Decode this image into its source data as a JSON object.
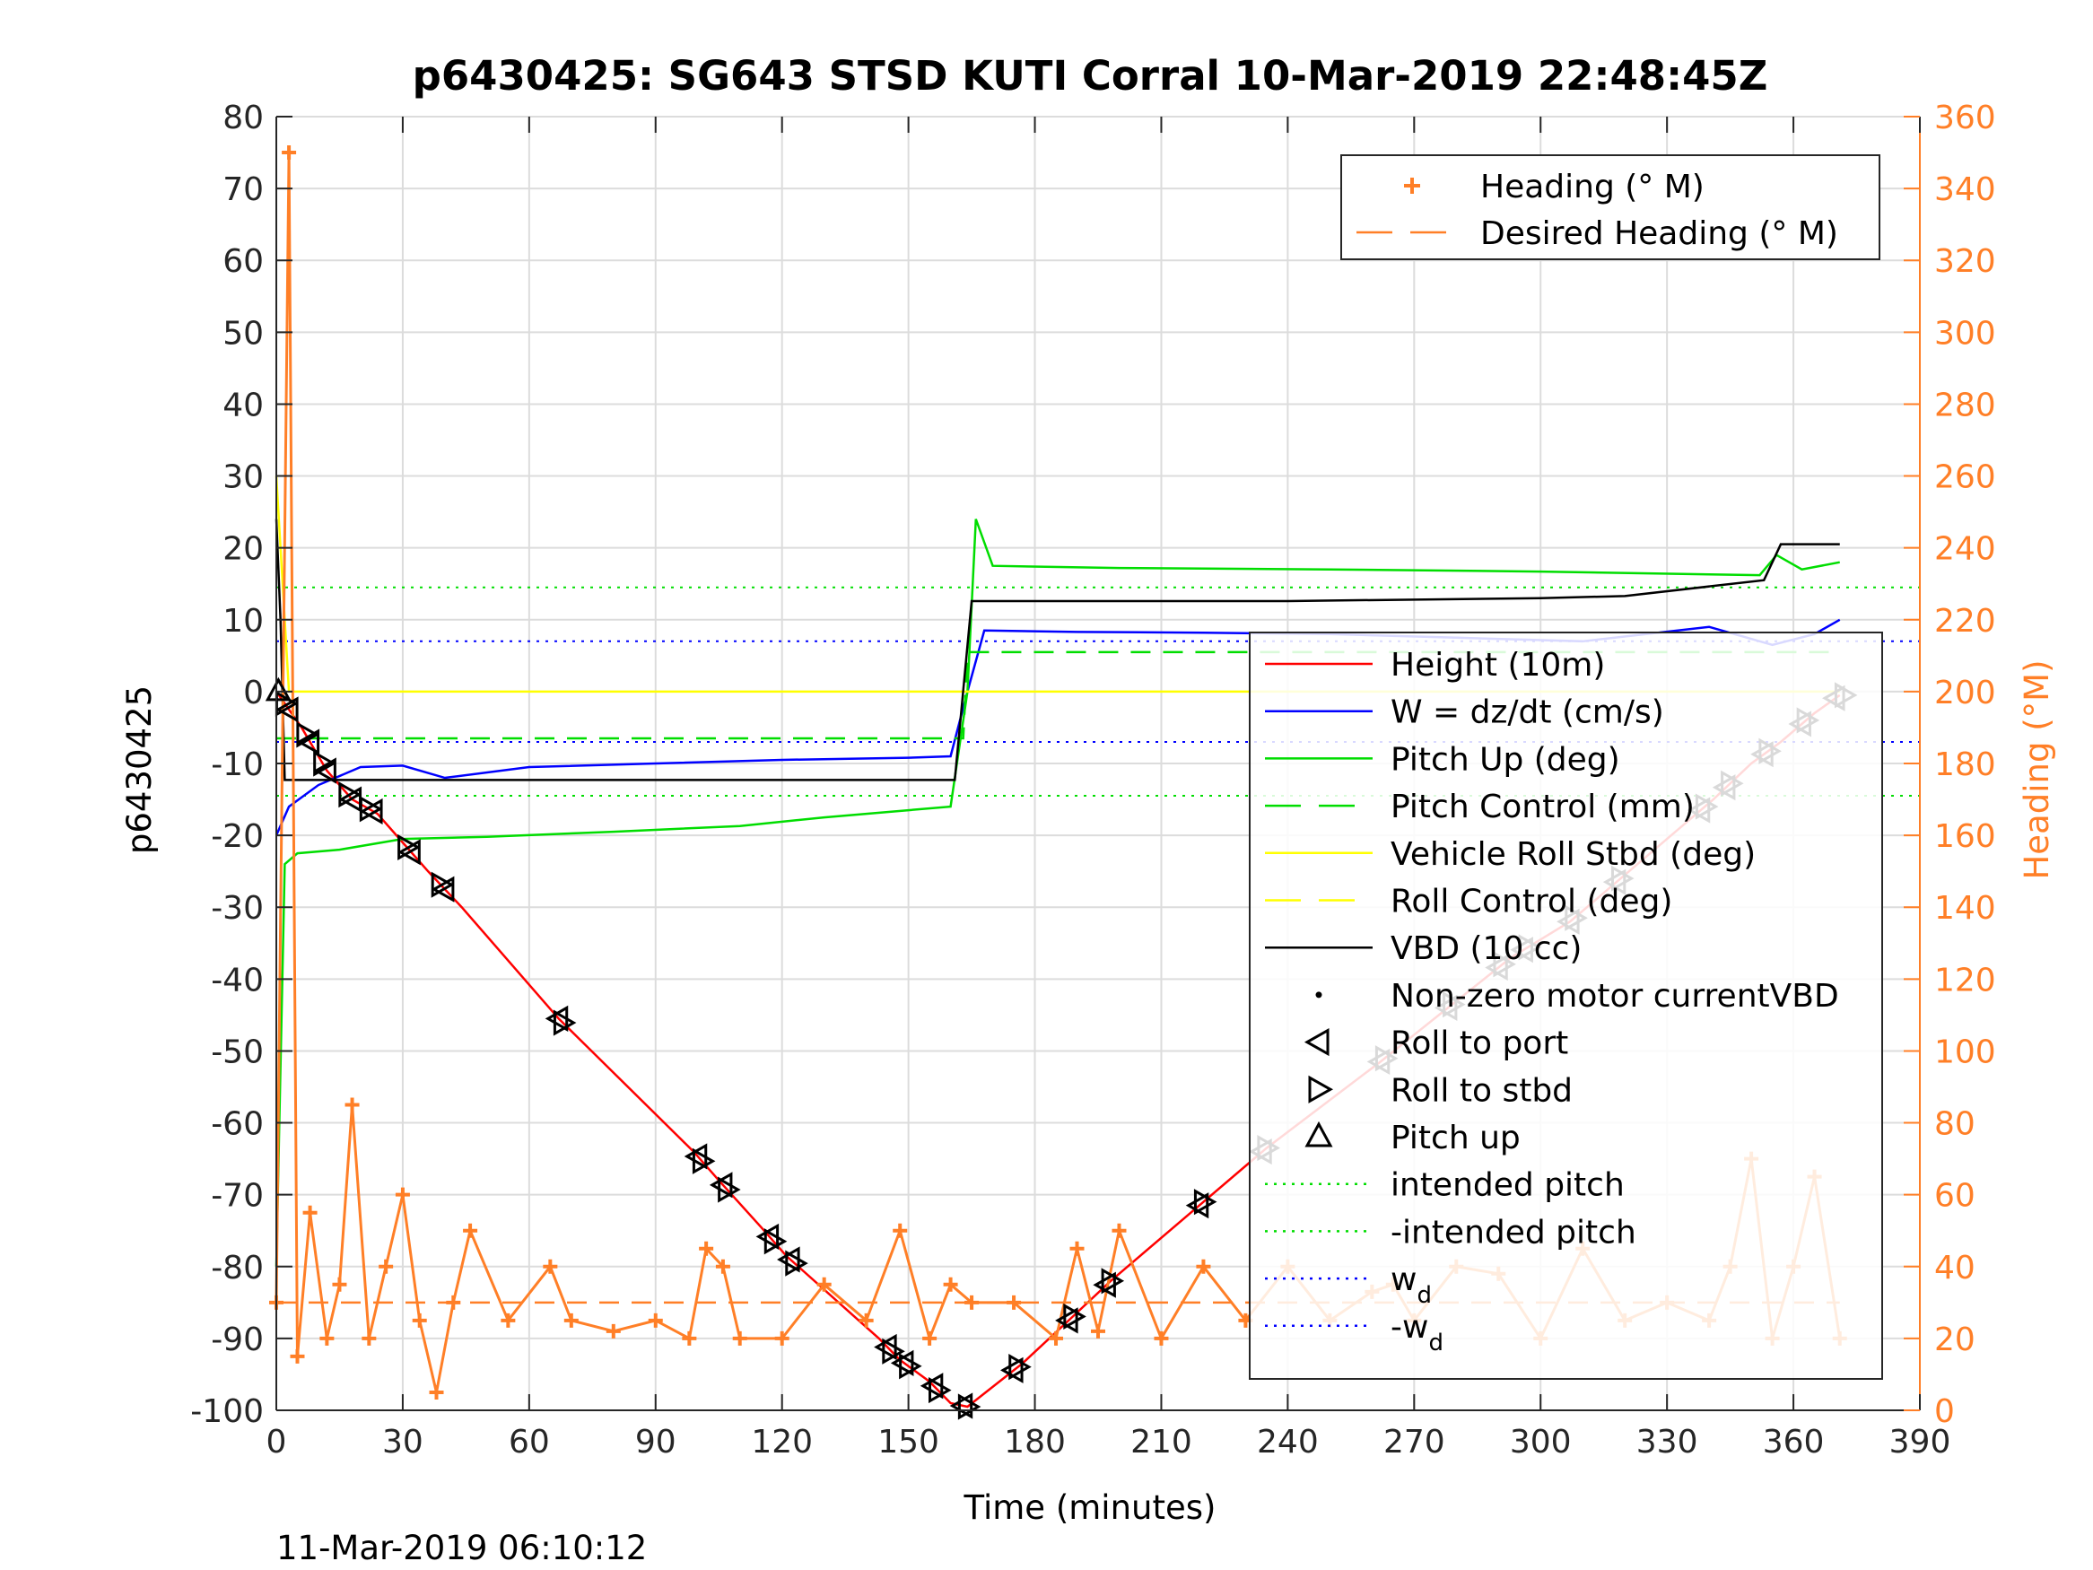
{
  "chart_data": {
    "type": "line",
    "title": "p6430425: SG643 STSD KUTI Corral 10-Mar-2019 22:48:45Z",
    "xlabel": "Time (minutes)",
    "ylabel": "p6430425",
    "ylabel_right": "Heading (°M)",
    "footer": "11-Mar-2019 06:10:12",
    "xlim": [
      0,
      390
    ],
    "ylim": [
      -100,
      80
    ],
    "ylim_right": [
      0,
      360
    ],
    "x_ticks": [
      "0",
      "30",
      "60",
      "90",
      "120",
      "150",
      "180",
      "210",
      "240",
      "270",
      "300",
      "330",
      "360",
      "390"
    ],
    "y_ticks": [
      "80",
      "70",
      "60",
      "50",
      "40",
      "30",
      "20",
      "10",
      "0",
      "-10",
      "-20",
      "-30",
      "-40",
      "-50",
      "-60",
      "-70",
      "-80",
      "-90",
      "-100"
    ],
    "y_right_ticks": [
      "360",
      "340",
      "320",
      "300",
      "280",
      "260",
      "240",
      "220",
      "200",
      "180",
      "160",
      "140",
      "120",
      "100",
      "80",
      "60",
      "40",
      "20",
      "0"
    ],
    "grid": true,
    "legend_top": {
      "position": "top-right",
      "entries": [
        {
          "label": "Heading (° M)",
          "color": "#ff7f27",
          "style": "plus"
        },
        {
          "label": "Desired Heading (° M)",
          "color": "#ff7f27",
          "style": "dash"
        }
      ]
    },
    "legend_main": {
      "position": "right",
      "entries": [
        {
          "label": "Height (10m)",
          "color": "#ff0000",
          "style": "solid"
        },
        {
          "label": "W = dz/dt (cm/s)",
          "color": "#0000ff",
          "style": "solid"
        },
        {
          "label": "Pitch Up (deg)",
          "color": "#00dd00",
          "style": "solid"
        },
        {
          "label": "Pitch Control (mm)",
          "color": "#00dd00",
          "style": "dash"
        },
        {
          "label": "Vehicle Roll Stbd (deg)",
          "color": "#ffff00",
          "style": "solid"
        },
        {
          "label": "Roll Control (deg)",
          "color": "#ffff00",
          "style": "dash"
        },
        {
          "label": "VBD (10 cc)",
          "color": "#000000",
          "style": "solid"
        },
        {
          "label": "Non-zero motor currentVBD",
          "color": "#000000",
          "style": "dot"
        },
        {
          "label": "Roll to port",
          "color": "#000000",
          "style": "tri-left"
        },
        {
          "label": "Roll to stbd",
          "color": "#000000",
          "style": "tri-right"
        },
        {
          "label": "Pitch up",
          "color": "#000000",
          "style": "tri-up"
        },
        {
          "label": "intended pitch",
          "color": "#00dd00",
          "style": "dotted"
        },
        {
          "label": "-intended pitch",
          "color": "#00dd00",
          "style": "dotted"
        },
        {
          "label": "w_d",
          "color": "#0000ff",
          "style": "dotted"
        },
        {
          "label": "-w_d",
          "color": "#0000ff",
          "style": "dotted"
        }
      ]
    },
    "series": [
      {
        "name": "Height (10m)",
        "color": "#ff0000",
        "axis": "left",
        "x": [
          0,
          6,
          12,
          18,
          24,
          30,
          36,
          44,
          67,
          99,
          105,
          115,
          121,
          143,
          148,
          155,
          160,
          164,
          177,
          188,
          198,
          219,
          235,
          262,
          278,
          293,
          307,
          318,
          336,
          341,
          350,
          357,
          365,
          371
        ],
        "y": [
          0,
          -5,
          -11,
          -15,
          -17,
          -21,
          -25,
          -30,
          -45.5,
          -64,
          -68,
          -74.5,
          -78.5,
          -90,
          -93,
          -96,
          -99,
          -99.5,
          -93.5,
          -87.5,
          -82,
          -71.5,
          -63.5,
          -51.5,
          -44,
          -37,
          -32,
          -26.5,
          -17.5,
          -15,
          -10,
          -7,
          -3,
          -0.5
        ]
      },
      {
        "name": "W = dz/dt (cm/s)",
        "color": "#0000ff",
        "axis": "left",
        "x": [
          0,
          3,
          10,
          20,
          30,
          40,
          60,
          90,
          120,
          150,
          160,
          164,
          168,
          190,
          220,
          250,
          280,
          310,
          340,
          355,
          365,
          371
        ],
        "y": [
          -20,
          -16,
          -13,
          -10.5,
          -10.3,
          -12,
          -10.5,
          -10,
          -9.5,
          -9.2,
          -9,
          0,
          8.5,
          8.3,
          8.2,
          8,
          7.5,
          7,
          9,
          6.5,
          8,
          10
        ]
      },
      {
        "name": "Pitch Up (deg)",
        "color": "#00dd00",
        "axis": "left",
        "x": [
          0,
          2,
          5,
          15,
          30,
          50,
          80,
          110,
          130,
          150,
          160,
          164,
          166,
          170,
          200,
          250,
          300,
          340,
          352,
          356,
          362,
          371
        ],
        "y": [
          -80,
          -24,
          -22.5,
          -22,
          -20.5,
          -20.2,
          -19.5,
          -18.7,
          -17.5,
          -16.5,
          -16,
          0,
          24,
          17.5,
          17.2,
          17,
          16.7,
          16.3,
          16.2,
          19,
          17,
          18
        ]
      },
      {
        "name": "Pitch Control (mm)",
        "color": "#00dd00",
        "axis": "left",
        "x": [
          0,
          163,
          164,
          371
        ],
        "y": [
          -6.5,
          -6.5,
          5.5,
          5.5
        ]
      },
      {
        "name": "Vehicle Roll Stbd (deg)",
        "color": "#ffff00",
        "axis": "left",
        "x": [
          0,
          3,
          10,
          50,
          100,
          150,
          163,
          164,
          200,
          250,
          300,
          350,
          371
        ],
        "y": [
          30,
          0,
          0,
          0,
          0,
          0,
          0,
          0,
          0,
          0,
          0,
          0,
          0
        ]
      },
      {
        "name": "VBD (10 cc)",
        "color": "#000000",
        "axis": "left",
        "x": [
          0,
          1,
          2,
          10,
          160,
          161,
          165,
          240,
          300,
          320,
          353,
          357,
          371
        ],
        "y": [
          24,
          10,
          -12.3,
          -12.3,
          -12.3,
          -12.3,
          12.6,
          12.6,
          13,
          13.3,
          15.5,
          20.5,
          20.5
        ]
      },
      {
        "name": "Heading (° M)",
        "color": "#ff7f27",
        "axis": "right",
        "x": [
          0,
          3,
          5,
          8,
          12,
          15,
          18,
          22,
          26,
          30,
          34,
          38,
          42,
          46,
          55,
          65,
          70,
          80,
          90,
          98,
          102,
          106,
          110,
          120,
          130,
          140,
          148,
          155,
          160,
          165,
          175,
          185,
          190,
          195,
          200,
          210,
          220,
          230,
          240,
          250,
          260,
          265,
          270,
          280,
          290,
          300,
          310,
          320,
          330,
          340,
          345,
          350,
          355,
          360,
          365,
          371
        ],
        "y": [
          30,
          350,
          15,
          55,
          20,
          35,
          85,
          20,
          40,
          60,
          25,
          5,
          30,
          50,
          25,
          40,
          25,
          22,
          25,
          20,
          45,
          40,
          20,
          20,
          35,
          25,
          50,
          20,
          35,
          30,
          30,
          20,
          45,
          22,
          50,
          20,
          40,
          25,
          40,
          25,
          33,
          35,
          25,
          40,
          38,
          20,
          45,
          25,
          30,
          25,
          40,
          70,
          20,
          40,
          65,
          20
        ]
      },
      {
        "name": "Desired Heading (° M)",
        "color": "#ff7f27",
        "axis": "right",
        "x": [
          0,
          371
        ],
        "y": [
          30,
          30
        ]
      }
    ],
    "markers": {
      "roll_to_port_x": [
        3,
        8,
        12,
        18,
        23,
        32,
        40,
        67,
        100,
        106,
        117,
        122,
        145,
        149,
        156,
        163,
        175,
        188,
        197,
        219,
        234,
        262,
        278,
        290,
        296,
        307,
        318,
        338,
        344,
        353,
        362,
        370
      ],
      "roll_to_stbd_x": [
        2,
        7,
        11,
        17,
        22,
        31,
        39,
        68,
        101,
        107,
        118,
        123,
        146,
        150,
        157,
        164,
        176,
        189,
        198,
        220,
        235,
        263,
        279,
        291,
        297,
        308,
        319,
        339,
        345,
        354,
        363,
        372
      ]
    },
    "intended_pitch": 14.5,
    "w_d": 7
  }
}
